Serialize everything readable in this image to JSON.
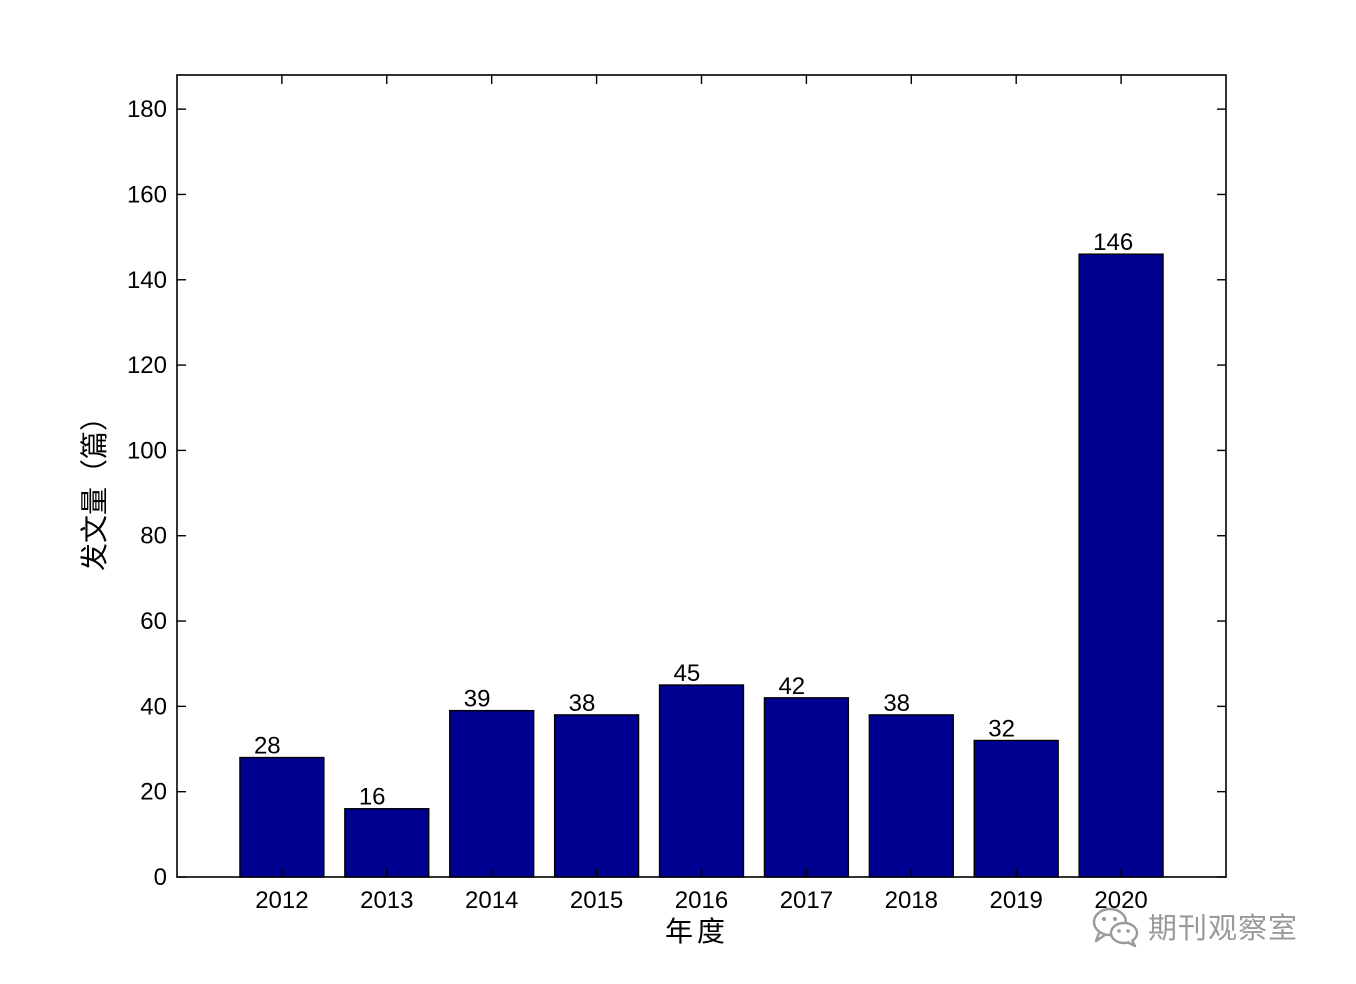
{
  "chart_data": {
    "type": "bar",
    "categories": [
      "2012",
      "2013",
      "2014",
      "2015",
      "2016",
      "2017",
      "2018",
      "2019",
      "2020"
    ],
    "values": [
      28,
      16,
      39,
      38,
      45,
      42,
      38,
      32,
      146
    ],
    "data_labels": [
      "28",
      "16",
      "39",
      "38",
      "45",
      "42",
      "38",
      "32",
      "146"
    ],
    "xlabel": "年度",
    "ylabel": "发文量（篇）",
    "ylim": [
      0,
      188
    ],
    "yticks": [
      0,
      20,
      40,
      60,
      80,
      100,
      120,
      140,
      160,
      180
    ],
    "grid": false,
    "legend": "none",
    "bar_color": "#000090",
    "bar_edge_color": "#000000"
  },
  "watermark": {
    "text": "期刊观察室",
    "icon": "wechat-icon",
    "color": "#9a9a9a"
  }
}
